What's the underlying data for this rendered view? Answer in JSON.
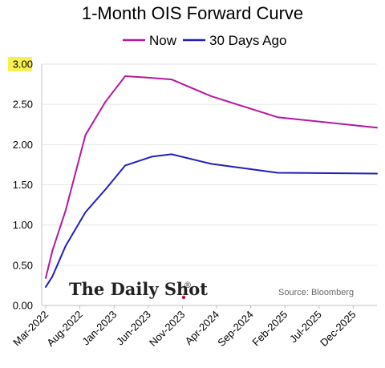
{
  "chart_data": {
    "type": "line",
    "title": "1-Month OIS Forward Curve",
    "xlabel": "",
    "ylabel": "",
    "ylim": [
      0,
      3.0
    ],
    "yticks": [
      "0.00",
      "0.50",
      "1.00",
      "1.50",
      "2.00",
      "2.50",
      "3.00"
    ],
    "highlight_tick": "3.00",
    "highlight_color": "#f7f04f",
    "x_labels": [
      "Mar-2022",
      "Aug-2022",
      "Jan-2023",
      "Jun-2023",
      "Nov-2023",
      "Apr-2024",
      "Sep-2024",
      "Feb-2025",
      "Jul-2025",
      "Dec-2025"
    ],
    "x_range": [
      0,
      50
    ],
    "legend_position": "top-center",
    "grid": true,
    "series": [
      {
        "name": "Now",
        "color": "#b5179e",
        "x": [
          0,
          1,
          3,
          6,
          9,
          12,
          16,
          19,
          25,
          35,
          50
        ],
        "y": [
          0.34,
          0.68,
          1.18,
          2.12,
          2.53,
          2.85,
          2.83,
          2.81,
          2.6,
          2.34,
          2.21
        ]
      },
      {
        "name": "30 Days Ago",
        "color": "#1f1fbf",
        "x": [
          0,
          1,
          3,
          6,
          9,
          12,
          16,
          19,
          25,
          35,
          50
        ],
        "y": [
          0.23,
          0.36,
          0.74,
          1.16,
          1.44,
          1.74,
          1.85,
          1.88,
          1.76,
          1.65,
          1.64
        ]
      }
    ]
  },
  "branding": {
    "brand_text": "The Daily Shot",
    "registered_mark": "®",
    "source_text": "Source: Bloomberg"
  }
}
